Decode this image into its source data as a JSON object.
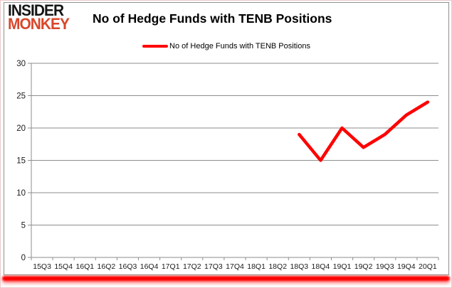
{
  "header": {
    "logo": {
      "line1": "INSIDER",
      "line2": "MONKEY"
    }
  },
  "chart_data": {
    "type": "line",
    "title": "No of Hedge Funds with TENB Positions",
    "xlabel": "",
    "ylabel": "",
    "categories": [
      "15Q3",
      "15Q4",
      "16Q1",
      "16Q2",
      "16Q3",
      "16Q4",
      "17Q1",
      "17Q2",
      "17Q3",
      "17Q4",
      "18Q1",
      "18Q2",
      "18Q3",
      "18Q4",
      "19Q1",
      "19Q2",
      "19Q3",
      "19Q4",
      "20Q1"
    ],
    "series": [
      {
        "name": "No of Hedge Funds with TENB Positions",
        "color": "#ff0000",
        "values": [
          null,
          null,
          null,
          null,
          null,
          null,
          null,
          null,
          null,
          null,
          null,
          null,
          19,
          15,
          20,
          17,
          19,
          22,
          24
        ]
      }
    ],
    "ylim": [
      0,
      30
    ],
    "yticks": [
      0,
      5,
      10,
      15,
      20,
      25,
      30
    ],
    "grid": true,
    "legend_position": "top-center"
  },
  "colors": {
    "line": "#ff0000",
    "logo_monkey": "#d8472b",
    "grid": "#8e8e8e",
    "axis": "#8e8e8e",
    "tick_text": "#1a1a1a",
    "card_border": "#8f8f8f",
    "bottom_bar": "#fb0000"
  }
}
